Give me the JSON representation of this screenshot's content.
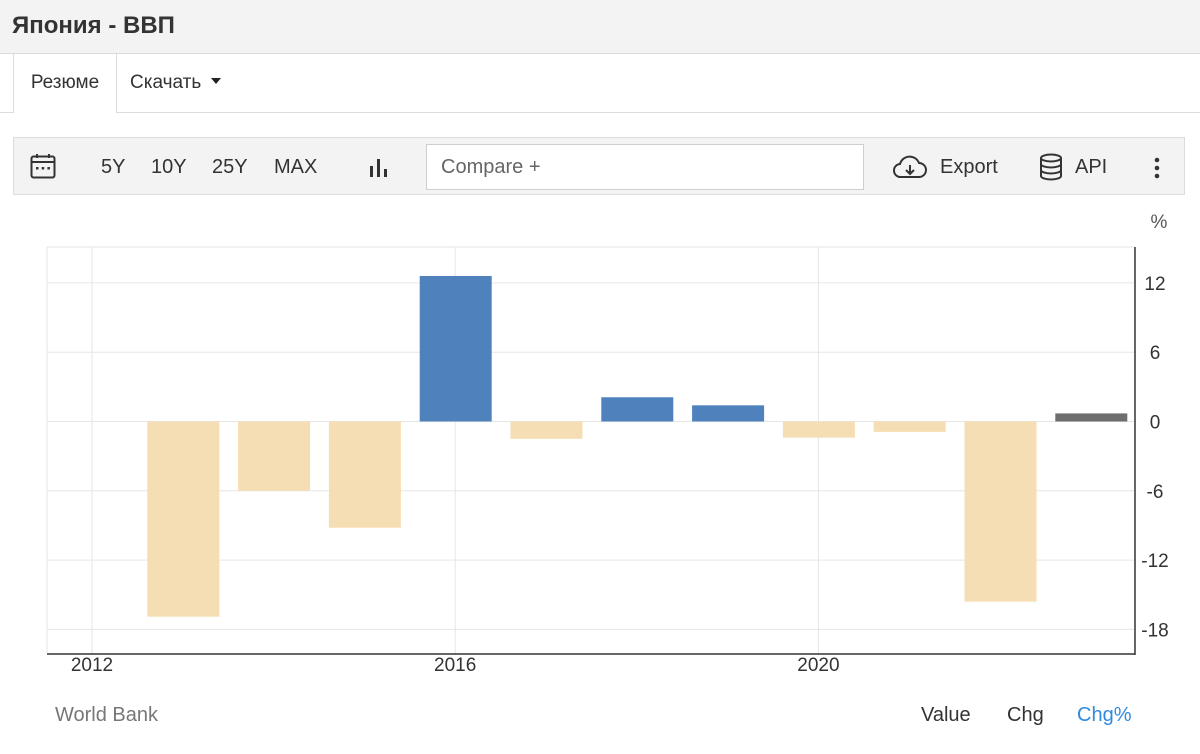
{
  "page": {
    "title": "Япония - ВВП"
  },
  "tabs": {
    "summary": "Резюме",
    "download": "Скачать"
  },
  "toolbar": {
    "calendar_icon": "calendar-icon",
    "ranges": [
      "5Y",
      "10Y",
      "25Y",
      "MAX"
    ],
    "chart_type_icon": "bar-chart-icon",
    "compare_placeholder": "Compare +",
    "export_label": "Export",
    "api_label": "API",
    "more_icon": "vertical-dots-icon"
  },
  "colors": {
    "positive": "#4f81bd",
    "negative": "#f5deb3",
    "latest": "#6e6e6e",
    "active_link": "#2f8ae0"
  },
  "chart_data": {
    "type": "bar",
    "unit_label": "%",
    "x": [
      2013,
      2014,
      2015,
      2016,
      2017,
      2018,
      2019,
      2020,
      2021,
      2022,
      2023
    ],
    "values": [
      -16.9,
      -6.0,
      -9.2,
      12.6,
      -1.5,
      2.1,
      1.4,
      -1.4,
      -0.9,
      -15.6,
      0.7
    ],
    "x_ticks": [
      "2012",
      "2016",
      "2020"
    ],
    "y_ticks": [
      12,
      6,
      0,
      -6,
      -12,
      -18
    ],
    "ylim": [
      -20,
      15
    ],
    "xlim": [
      2011.5,
      2023.5
    ],
    "grid": true,
    "y_axis_side": "right"
  },
  "footer": {
    "source": "World Bank",
    "value_label": "Value",
    "chg_label": "Chg",
    "chgpct_label": "Chg%"
  }
}
